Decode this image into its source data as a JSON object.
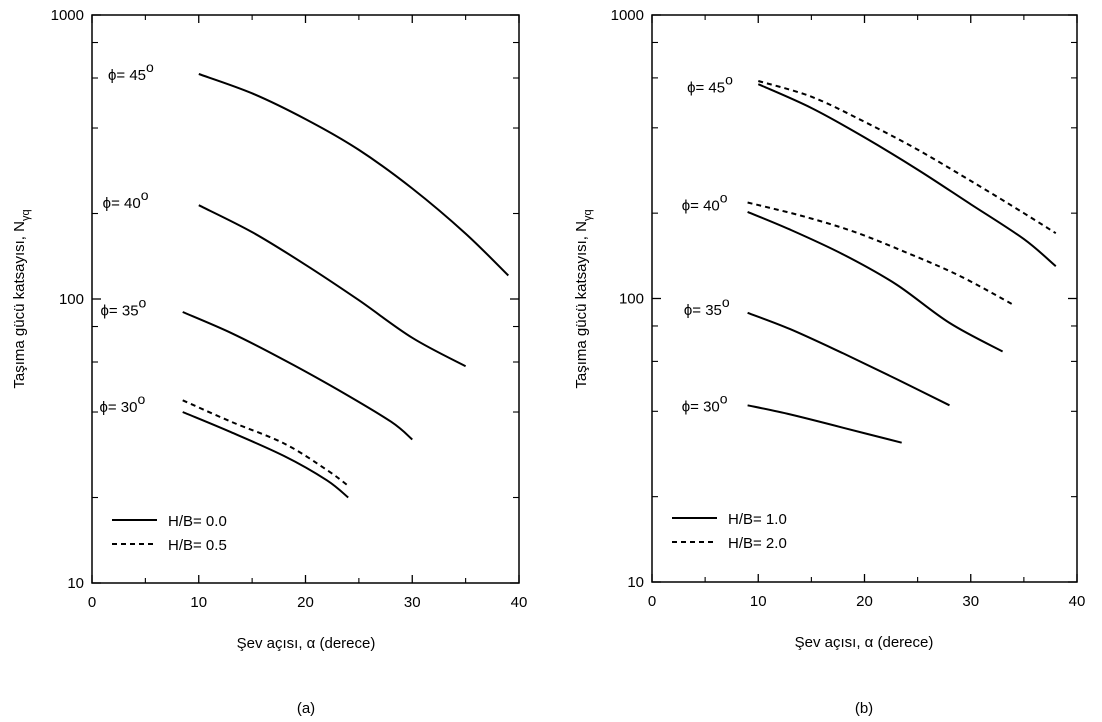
{
  "figure": {
    "panels": [
      {
        "caption": "(a)",
        "title": "",
        "xlabel": "Şev açısı, α (derece)",
        "ylabel_main": "Taşıma gücü katsayısı, N",
        "ylabel_sub": "γq",
        "legend": [
          {
            "label": "H/B= 0.0",
            "style": "solid"
          },
          {
            "label": "H/B= 0.5",
            "style": "dashed"
          }
        ]
      },
      {
        "caption": "(b)",
        "title": "",
        "xlabel": "Şev açısı, α (derece)",
        "ylabel_main": "Taşıma gücü katsayısı, N",
        "ylabel_sub": "γq",
        "legend": [
          {
            "label": "H/B= 1.0",
            "style": "solid"
          },
          {
            "label": "H/B= 2.0",
            "style": "dashed"
          }
        ]
      }
    ]
  },
  "chart_data": [
    {
      "type": "line",
      "title": "",
      "xlabel": "Şev açısı, α (derece)",
      "ylabel": "Taşıma gücü katsayısı, Nγq",
      "xlim": [
        0,
        40
      ],
      "ylim": [
        10,
        1000
      ],
      "yscale": "log",
      "grid": false,
      "x_ticks": [
        "0",
        "10",
        "20",
        "30",
        "40"
      ],
      "y_ticks": [
        "10",
        "100",
        "1000"
      ],
      "legend_position": "bottom-left",
      "curve_labels": [
        {
          "text": "ϕ= 45",
          "sup": "o",
          "x": 1.5,
          "y": 620
        },
        {
          "text": "ϕ= 40",
          "sup": "o",
          "x": 1.0,
          "y": 220
        },
        {
          "text": "ϕ= 35",
          "sup": "o",
          "x": 0.8,
          "y": 92
        },
        {
          "text": "ϕ= 30",
          "sup": "o",
          "x": 0.7,
          "y": 42
        }
      ],
      "series": [
        {
          "name": "H/B= 0.0",
          "style": "solid",
          "x": [
            10,
            15,
            20,
            25,
            30,
            35,
            39
          ],
          "y": [
            620,
            530,
            430,
            335,
            245,
            170,
            121
          ]
        },
        {
          "name": "H/B= 0.0",
          "style": "solid",
          "x": [
            10,
            15,
            20,
            25,
            30,
            35
          ],
          "y": [
            214,
            172,
            132,
            99,
            73,
            58
          ]
        },
        {
          "name": "H/B= 0.0",
          "style": "solid",
          "x": [
            8.5,
            13,
            18,
            23,
            28,
            30
          ],
          "y": [
            90,
            76,
            61,
            48,
            37,
            32
          ]
        },
        {
          "name": "H/B= 0.0",
          "style": "solid",
          "x": [
            8.5,
            13,
            18,
            22,
            24
          ],
          "y": [
            40,
            34,
            28,
            23,
            20
          ]
        },
        {
          "name": "H/B= 0.5",
          "style": "dashed",
          "x": [
            8.5,
            13,
            18,
            22,
            24
          ],
          "y": [
            44,
            37,
            31,
            25,
            22
          ]
        }
      ]
    },
    {
      "type": "line",
      "title": "",
      "xlabel": "Şev açısı, α (derece)",
      "ylabel": "Taşıma gücü katsayısı, Nγq",
      "xlim": [
        0,
        40
      ],
      "ylim": [
        10,
        1000
      ],
      "yscale": "log",
      "grid": false,
      "x_ticks": [
        "0",
        "10",
        "20",
        "30",
        "40"
      ],
      "y_ticks": [
        "10",
        "100",
        "1000"
      ],
      "legend_position": "bottom-left",
      "curve_labels": [
        {
          "text": "ϕ= 45",
          "sup": "o",
          "x": 3.3,
          "y": 560
        },
        {
          "text": "ϕ= 40",
          "sup": "o",
          "x": 2.8,
          "y": 215
        },
        {
          "text": "ϕ= 35",
          "sup": "o",
          "x": 3.0,
          "y": 92
        },
        {
          "text": "ϕ= 30",
          "sup": "o",
          "x": 2.8,
          "y": 42
        }
      ],
      "series": [
        {
          "name": "H/B= 1.0",
          "style": "solid",
          "x": [
            10,
            15,
            20,
            25,
            30,
            35,
            38
          ],
          "y": [
            570,
            470,
            370,
            285,
            215,
            162,
            130
          ]
        },
        {
          "name": "H/B= 1.0",
          "style": "solid",
          "x": [
            9,
            13,
            18,
            23,
            28,
            33
          ],
          "y": [
            202,
            175,
            143,
            112,
            82,
            65
          ]
        },
        {
          "name": "H/B= 1.0",
          "style": "solid",
          "x": [
            9,
            13,
            18,
            23,
            28
          ],
          "y": [
            89,
            78,
            64,
            52,
            42
          ]
        },
        {
          "name": "H/B= 1.0",
          "style": "solid",
          "x": [
            9,
            13,
            18,
            23.5
          ],
          "y": [
            42,
            39,
            35,
            31
          ]
        },
        {
          "name": "H/B= 2.0",
          "style": "dashed",
          "x": [
            10,
            15,
            20,
            25,
            30,
            35,
            38
          ],
          "y": [
            585,
            515,
            420,
            335,
            260,
            200,
            170
          ]
        },
        {
          "name": "H/B= 2.0",
          "style": "dashed",
          "x": [
            9,
            14,
            19,
            24,
            29,
            34
          ],
          "y": [
            218,
            196,
            172,
            145,
            120,
            95
          ]
        }
      ]
    }
  ]
}
